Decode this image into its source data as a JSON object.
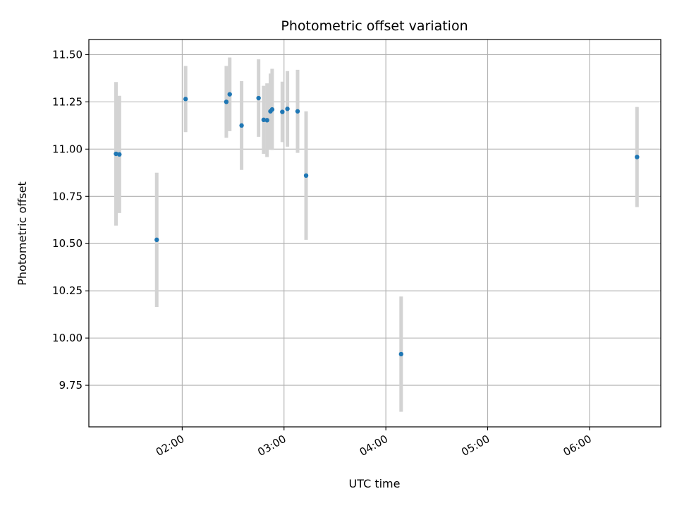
{
  "chart_data": {
    "type": "scatter",
    "title": "Photometric offset variation",
    "xlabel": "UTC time",
    "ylabel": "Photometric offset",
    "x_ticks": [
      "02:00",
      "03:00",
      "04:00",
      "05:00",
      "06:00"
    ],
    "y_ticks": [
      "9.75",
      "10.00",
      "10.25",
      "10.50",
      "10.75",
      "11.00",
      "11.25",
      "11.50"
    ],
    "xlim": [
      "01:05",
      "06:42"
    ],
    "ylim": [
      9.53,
      11.58
    ],
    "grid": true,
    "colors": {
      "point": "#1f77b4",
      "errorbar": "#d3d3d3",
      "grid": "#b0b0b0"
    },
    "points": [
      {
        "x": "01:21",
        "y": 10.975,
        "err": 0.38
      },
      {
        "x": "01:23",
        "y": 10.972,
        "err": 0.31
      },
      {
        "x": "01:45",
        "y": 10.52,
        "err": 0.355
      },
      {
        "x": "02:02",
        "y": 11.265,
        "err": 0.175
      },
      {
        "x": "02:26",
        "y": 11.25,
        "err": 0.19
      },
      {
        "x": "02:28",
        "y": 11.29,
        "err": 0.195
      },
      {
        "x": "02:35",
        "y": 11.125,
        "err": 0.235
      },
      {
        "x": "02:45",
        "y": 11.27,
        "err": 0.205
      },
      {
        "x": "02:48",
        "y": 11.155,
        "err": 0.18
      },
      {
        "x": "02:50",
        "y": 11.153,
        "err": 0.195
      },
      {
        "x": "02:52",
        "y": 11.2,
        "err": 0.2
      },
      {
        "x": "02:53",
        "y": 11.21,
        "err": 0.215
      },
      {
        "x": "02:59",
        "y": 11.197,
        "err": 0.16
      },
      {
        "x": "03:02",
        "y": 11.213,
        "err": 0.2
      },
      {
        "x": "03:08",
        "y": 11.2,
        "err": 0.22
      },
      {
        "x": "03:13",
        "y": 10.86,
        "err": 0.34
      },
      {
        "x": "04:09",
        "y": 9.915,
        "err": 0.305
      },
      {
        "x": "06:28",
        "y": 10.958,
        "err": 0.265
      }
    ]
  }
}
